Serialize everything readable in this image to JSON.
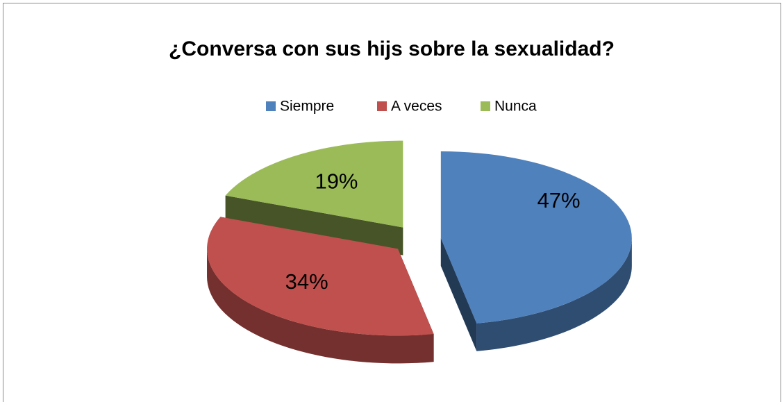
{
  "chart_data": {
    "type": "pie3d",
    "title": "¿Conversa con sus hijs sobre la sexualidad?",
    "categories": [
      "Siempre",
      "A veces",
      "Nunca"
    ],
    "values": [
      47,
      34,
      19
    ],
    "value_labels": [
      "47%",
      "34%",
      "19%"
    ],
    "colors": [
      "#4f81bd",
      "#c0504d",
      "#9bbb59"
    ],
    "legend": "top"
  }
}
